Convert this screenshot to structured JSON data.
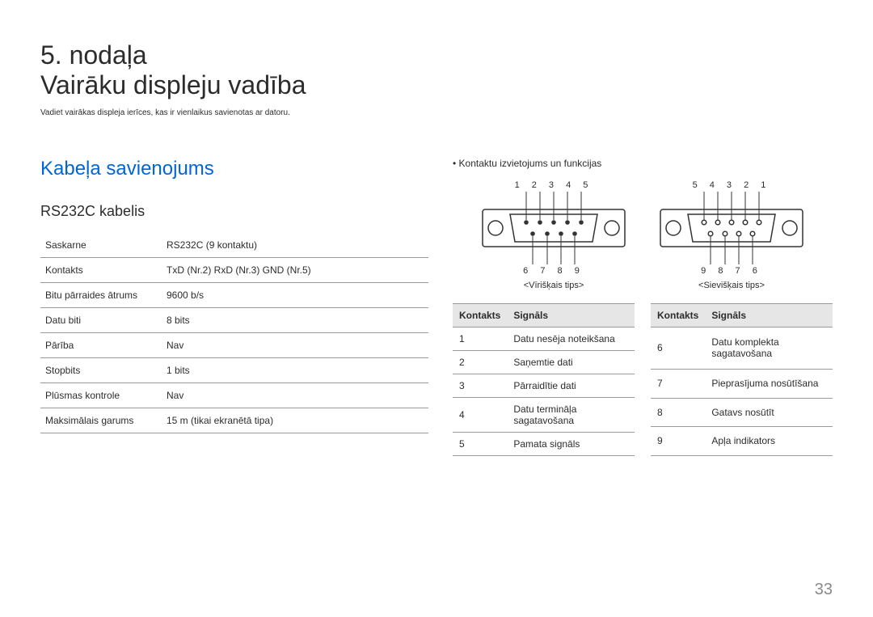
{
  "page": {
    "chapter_number": "5. nodaļa",
    "chapter_title": "Vairāku displeju vadība",
    "subtitle": "Vadiet vairākas displeja ierīces, kas ir vienlaikus savienotas ar datoru.",
    "page_number": "33"
  },
  "left": {
    "section_title": "Kabeļa savienojums",
    "sub_heading": "RS232C kabelis",
    "spec_rows": [
      {
        "label": "Saskarne",
        "value": "RS232C (9 kontaktu)"
      },
      {
        "label": "Kontakts",
        "value": "TxD (Nr.2) RxD (Nr.3) GND (Nr.5)"
      },
      {
        "label": "Bitu pārraides ātrums",
        "value": "9600 b/s"
      },
      {
        "label": "Datu biti",
        "value": "8 bits"
      },
      {
        "label": "Pārība",
        "value": "Nav"
      },
      {
        "label": "Stopbits",
        "value": "1 bits"
      },
      {
        "label": "Plūsmas kontrole",
        "value": "Nav"
      },
      {
        "label": "Maksimālais garums",
        "value": "15 m (tikai ekranētā tipa)"
      }
    ]
  },
  "right": {
    "bullet": "Kontaktu izvietojums un funkcijas",
    "male": {
      "top_pins": "1  2  3  4  5",
      "bottom_pins": "6  7  8  9",
      "label": "<Vīrišķais tips>"
    },
    "female": {
      "top_pins": "5  4  3  2  1",
      "bottom_pins": "9  8  7  6",
      "label": "<Sievišķais tips>"
    },
    "table_headers": {
      "pin": "Kontakts",
      "signal": "Signāls"
    },
    "pinout_left": [
      {
        "pin": "1",
        "signal": "Datu nesēja noteikšana"
      },
      {
        "pin": "2",
        "signal": "Saņemtie dati"
      },
      {
        "pin": "3",
        "signal": "Pārraidītie dati"
      },
      {
        "pin": "4",
        "signal": "Datu termināļa sagatavošana"
      },
      {
        "pin": "5",
        "signal": "Pamata signāls"
      }
    ],
    "pinout_right": [
      {
        "pin": "6",
        "signal": "Datu komplekta sagatavošana"
      },
      {
        "pin": "7",
        "signal": "Pieprasījuma nosūtīšana"
      },
      {
        "pin": "8",
        "signal": "Gatavs nosūtīt"
      },
      {
        "pin": "9",
        "signal": "Apļa indikators"
      }
    ]
  },
  "style": {
    "accent_color": "#0066d6",
    "text_color": "#2c2c2c",
    "border_color": "#9a9a9a",
    "header_bg": "#e6e6e6",
    "page_bg": "#ffffff",
    "page_num_color": "#8a8a8a",
    "chapter_fontsize": 32,
    "section_fontsize": 24,
    "subheading_fontsize": 18,
    "body_fontsize": 12
  }
}
